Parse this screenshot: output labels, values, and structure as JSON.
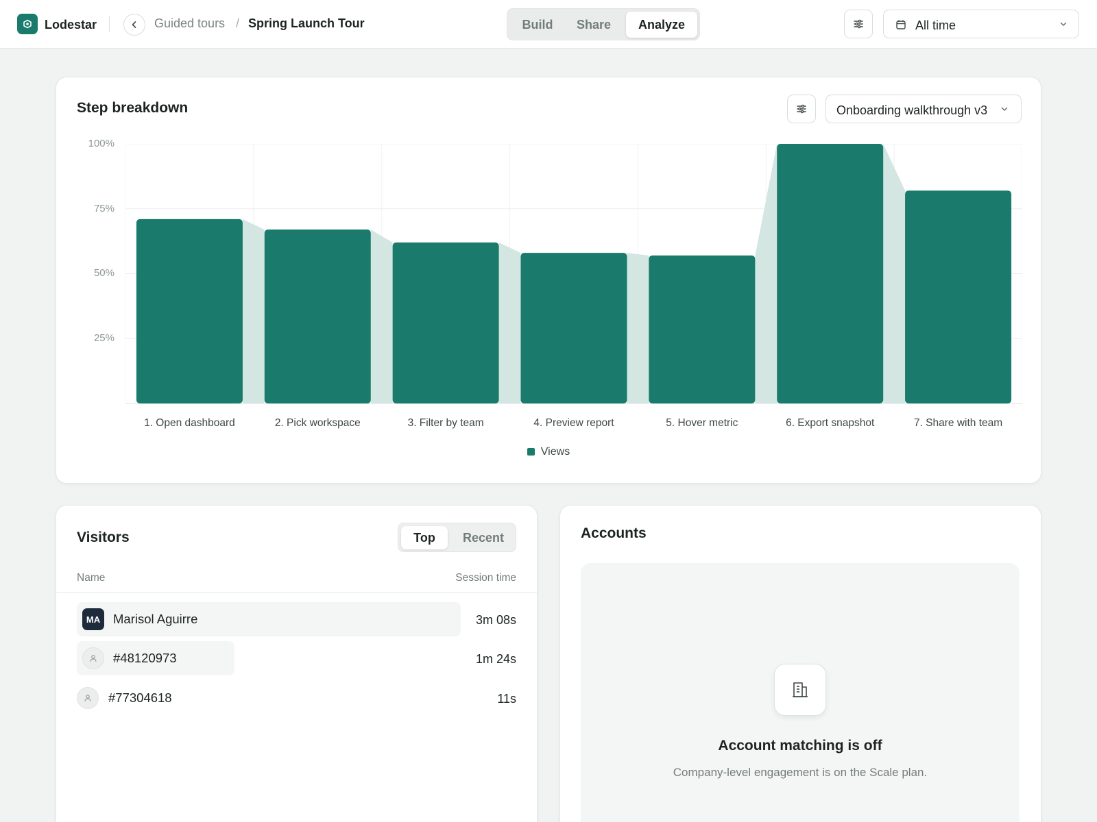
{
  "app": {
    "name": "Lodestar"
  },
  "breadcrumb": {
    "parent": "Guided tours",
    "separator": "/",
    "current": "Spring Launch Tour"
  },
  "mode_tabs": [
    {
      "label": "Build",
      "active": false
    },
    {
      "label": "Share",
      "active": false
    },
    {
      "label": "Analyze",
      "active": true
    }
  ],
  "toolbar": {
    "filter_icon": "sliders-icon",
    "date_range": "All time"
  },
  "step_breakdown": {
    "title": "Step breakdown",
    "tour_select": "Onboarding walkthrough v3",
    "legend": "Views",
    "y_ticks": [
      "100%",
      "75%",
      "50%",
      "25%"
    ]
  },
  "chart_data": {
    "type": "bar",
    "categories": [
      "1. Open dashboard",
      "2. Pick workspace",
      "3. Filter by team",
      "4. Preview report",
      "5. Hover metric",
      "6. Export snapshot",
      "7. Share with team"
    ],
    "series": [
      {
        "name": "Views",
        "values": [
          71,
          67,
          62,
          58,
          57,
          100,
          82
        ]
      }
    ],
    "ylim": [
      0,
      100
    ],
    "y_unit": "%",
    "grid": true,
    "legend_position": "bottom-center",
    "colors": {
      "bar": "#1a7a6b",
      "dropoff_area": "#d3e6e2"
    }
  },
  "visitors": {
    "title": "Visitors",
    "tabs": [
      {
        "label": "Top",
        "active": true
      },
      {
        "label": "Recent",
        "active": false
      }
    ],
    "col_name": "Name",
    "col_time": "Session time",
    "rows": [
      {
        "initials": "MA",
        "name": "Marisol Aguirre",
        "time": "3m 08s"
      },
      {
        "initials": "",
        "name": "#48120973",
        "time": "1m 24s"
      },
      {
        "initials": "",
        "name": "#77304618",
        "time": "11s"
      }
    ]
  },
  "accounts": {
    "title": "Accounts",
    "empty_icon": "building-icon",
    "empty_title": "Account matching is off",
    "empty_sub": "Company-level engagement is on the Scale plan."
  }
}
